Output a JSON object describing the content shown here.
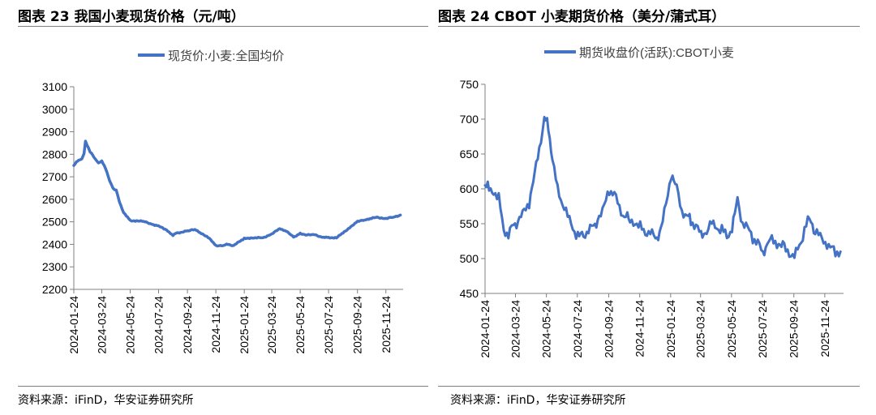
{
  "panels": [
    {
      "title": "图表 23 我国小麦现货价格（元/吨）",
      "source": "资料来源：iFinD，华安证券研究所"
    },
    {
      "title": "图表 24 CBOT 小麦期货价格（美分/蒲式耳）",
      "source": "资料来源：iFinD，华安证券研究所"
    }
  ],
  "chart_data": [
    {
      "type": "line",
      "legend": {
        "label": "现货价:小麦:全国均价",
        "placement": "top-center"
      },
      "ylim": [
        2200,
        3100
      ],
      "yticks": [
        "2200",
        "2300",
        "2400",
        "2500",
        "2600",
        "2700",
        "2800",
        "2900",
        "3000",
        "3100"
      ],
      "xticks": [
        "2024-01-24",
        "2024-03-24",
        "2024-05-24",
        "2024-07-24",
        "2024-09-24",
        "2024-11-24",
        "2025-01-24",
        "2025-03-24",
        "2025-05-24",
        "2025-07-24",
        "2025-09-24",
        "2025-11-24"
      ],
      "grid": false,
      "color": "#4472c4",
      "series": [
        {
          "x": [
            "2024-01-24",
            "2024-02-01",
            "2024-02-10",
            "2024-02-15",
            "2024-02-18",
            "2024-02-28",
            "2024-03-10",
            "2024-03-17",
            "2024-03-24",
            "2024-04-01",
            "2024-04-10",
            "2024-04-17",
            "2024-04-24",
            "2024-05-01",
            "2024-05-10",
            "2024-05-24",
            "2024-06-10",
            "2024-06-24",
            "2024-07-10",
            "2024-07-24",
            "2024-08-10",
            "2024-08-24",
            "2024-09-01",
            "2024-09-24",
            "2024-10-10",
            "2024-10-24",
            "2024-11-10",
            "2024-11-24",
            "2024-12-10",
            "2024-12-20",
            "2025-01-01",
            "2025-01-24",
            "2025-02-10",
            "2025-02-20",
            "2025-03-05",
            "2025-03-24",
            "2025-04-10",
            "2025-04-24",
            "2025-05-10",
            "2025-05-24",
            "2025-06-05",
            "2025-06-24",
            "2025-07-10",
            "2025-07-24",
            "2025-08-10",
            "2025-08-24",
            "2025-09-10",
            "2025-09-24",
            "2025-10-10",
            "2025-10-24",
            "2025-11-05",
            "2025-11-24",
            "2025-12-10",
            "2025-12-25"
          ],
          "y": [
            2750,
            2770,
            2780,
            2800,
            2860,
            2810,
            2780,
            2760,
            2770,
            2740,
            2680,
            2650,
            2640,
            2590,
            2540,
            2505,
            2505,
            2500,
            2490,
            2480,
            2465,
            2440,
            2450,
            2460,
            2465,
            2450,
            2425,
            2395,
            2395,
            2400,
            2395,
            2425,
            2430,
            2428,
            2430,
            2445,
            2470,
            2460,
            2430,
            2450,
            2440,
            2445,
            2430,
            2430,
            2430,
            2450,
            2480,
            2500,
            2510,
            2515,
            2520,
            2515,
            2520,
            2530
          ]
        }
      ]
    },
    {
      "type": "line",
      "legend": {
        "label": "期货收盘价(活跃):CBOT小麦",
        "placement": "top-center"
      },
      "ylim": [
        450,
        750
      ],
      "yticks": [
        "450",
        "500",
        "550",
        "600",
        "650",
        "700",
        "750"
      ],
      "xticks": [
        "2024-01-24",
        "2024-03-24",
        "2024-05-24",
        "2024-07-24",
        "2024-09-24",
        "2024-11-24",
        "2025-01-24",
        "2025-03-24",
        "2025-05-24",
        "2025-07-24",
        "2025-09-24",
        "2025-11-24"
      ],
      "grid": false,
      "color": "#4472c4",
      "series": [
        {
          "x": [
            "2024-01-24",
            "2024-02-01",
            "2024-02-10",
            "2024-02-20",
            "2024-03-01",
            "2024-03-10",
            "2024-03-20",
            "2024-04-01",
            "2024-04-10",
            "2024-04-20",
            "2024-05-01",
            "2024-05-10",
            "2024-05-20",
            "2024-05-28",
            "2024-06-05",
            "2024-06-15",
            "2024-06-25",
            "2024-07-05",
            "2024-07-15",
            "2024-07-25",
            "2024-08-05",
            "2024-08-15",
            "2024-08-25",
            "2024-09-05",
            "2024-09-15",
            "2024-09-25",
            "2024-10-05",
            "2024-10-15",
            "2024-10-25",
            "2024-11-05",
            "2024-11-15",
            "2024-11-25",
            "2024-12-05",
            "2024-12-15",
            "2024-12-25",
            "2025-01-05",
            "2025-01-15",
            "2025-01-25",
            "2025-02-05",
            "2025-02-15",
            "2025-02-25",
            "2025-03-05",
            "2025-03-15",
            "2025-03-25",
            "2025-04-05",
            "2025-04-15",
            "2025-04-25",
            "2025-05-05",
            "2025-05-15",
            "2025-05-25",
            "2025-06-05",
            "2025-06-15",
            "2025-06-25",
            "2025-07-05",
            "2025-07-15",
            "2025-07-25",
            "2025-08-05",
            "2025-08-15",
            "2025-08-25",
            "2025-09-05",
            "2025-09-15",
            "2025-09-25",
            "2025-10-05",
            "2025-10-15",
            "2025-10-25",
            "2025-11-05",
            "2025-11-15",
            "2025-11-25",
            "2025-12-05",
            "2025-12-15",
            "2025-12-25"
          ],
          "y": [
            605,
            600,
            595,
            585,
            545,
            530,
            550,
            555,
            570,
            580,
            620,
            660,
            700,
            690,
            640,
            600,
            580,
            560,
            545,
            530,
            535,
            540,
            545,
            560,
            575,
            600,
            590,
            575,
            560,
            555,
            550,
            545,
            540,
            535,
            530,
            540,
            580,
            620,
            600,
            570,
            560,
            555,
            545,
            535,
            540,
            550,
            545,
            540,
            535,
            540,
            585,
            550,
            545,
            530,
            520,
            510,
            525,
            525,
            520,
            515,
            510,
            500,
            520,
            540,
            560,
            540,
            530,
            525,
            515,
            510,
            510
          ]
        }
      ]
    }
  ]
}
